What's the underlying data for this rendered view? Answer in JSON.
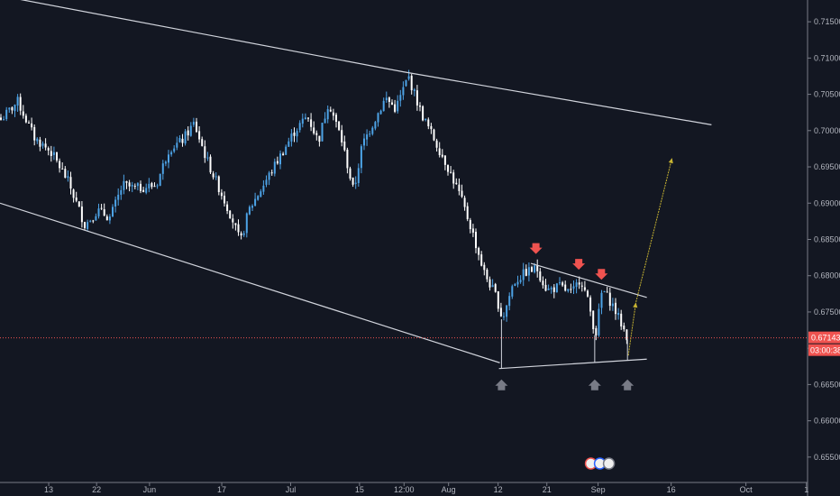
{
  "chart_data": {
    "type": "candlestick",
    "y_axis": {
      "ticks": [
        "0.71500",
        "0.71000",
        "0.70500",
        "0.70000",
        "0.69500",
        "0.69000",
        "0.68500",
        "0.68000",
        "0.67500",
        "0.67000",
        "0.66500",
        "0.66000",
        "0.65500"
      ],
      "range": [
        0.6515,
        0.718
      ],
      "position": "right"
    },
    "x_axis": {
      "ticks": [
        "13",
        "22",
        "Jun",
        "17",
        "Jul",
        "15",
        "12:00",
        "Aug",
        "12",
        "21",
        "Sep",
        "16",
        "Oct",
        "1"
      ]
    },
    "current_price": {
      "label": "0.67143",
      "value": 0.67143,
      "countdown": "03:00:38",
      "color": "#ef5350"
    },
    "colors": {
      "background": "#131722",
      "up_candle": "#4da3e6",
      "down_candle": "#ffffff",
      "trendline": "#d1d4dc",
      "sell_arrow": "#ef5350",
      "buy_arrow": "#787b86",
      "projection": "#c8b432"
    },
    "drawings": {
      "channel_upper": [
        [
          0.0,
          0.7186
        ],
        [
          0.48,
          0.7081
        ],
        [
          0.847,
          0.7008
        ]
      ],
      "channel_lower": [
        [
          0.0,
          0.69
        ],
        [
          0.595,
          0.668
        ]
      ],
      "triangle_top": [
        [
          0.632,
          0.6817
        ],
        [
          0.77,
          0.677
        ]
      ],
      "triangle_bottom": [
        [
          0.594,
          0.6672
        ],
        [
          0.77,
          0.6685
        ]
      ],
      "projection_path": [
        [
          0.748,
          0.669
        ],
        [
          0.757,
          0.6763
        ],
        [
          0.8,
          0.6962
        ]
      ],
      "sell_arrows_at": [
        0.638,
        0.689,
        0.716
      ],
      "buy_arrows_at": [
        0.597,
        0.708,
        0.747
      ]
    },
    "series": {
      "keypoints": [
        [
          0.0,
          0.7015
        ],
        [
          0.02,
          0.704
        ],
        [
          0.04,
          0.699
        ],
        [
          0.06,
          0.697
        ],
        [
          0.08,
          0.693
        ],
        [
          0.1,
          0.687
        ],
        [
          0.115,
          0.689
        ],
        [
          0.13,
          0.688
        ],
        [
          0.145,
          0.6925
        ],
        [
          0.16,
          0.692
        ],
        [
          0.185,
          0.6925
        ],
        [
          0.2,
          0.6975
        ],
        [
          0.215,
          0.6985
        ],
        [
          0.23,
          0.701
        ],
        [
          0.245,
          0.696
        ],
        [
          0.26,
          0.692
        ],
        [
          0.275,
          0.688
        ],
        [
          0.285,
          0.6845
        ],
        [
          0.295,
          0.689
        ],
        [
          0.31,
          0.692
        ],
        [
          0.33,
          0.696
        ],
        [
          0.35,
          0.7
        ],
        [
          0.365,
          0.702
        ],
        [
          0.378,
          0.6985
        ],
        [
          0.39,
          0.704
        ],
        [
          0.405,
          0.699
        ],
        [
          0.42,
          0.6915
        ],
        [
          0.43,
          0.698
        ],
        [
          0.445,
          0.7015
        ],
        [
          0.458,
          0.7045
        ],
        [
          0.47,
          0.703
        ],
        [
          0.485,
          0.7075
        ],
        [
          0.5,
          0.7025
        ],
        [
          0.515,
          0.699
        ],
        [
          0.53,
          0.6955
        ],
        [
          0.545,
          0.6915
        ],
        [
          0.56,
          0.6865
        ],
        [
          0.575,
          0.6805
        ],
        [
          0.59,
          0.677
        ],
        [
          0.597,
          0.674
        ],
        [
          0.61,
          0.679
        ],
        [
          0.625,
          0.6805
        ],
        [
          0.638,
          0.681
        ],
        [
          0.65,
          0.678
        ],
        [
          0.665,
          0.6785
        ],
        [
          0.68,
          0.6775
        ],
        [
          0.69,
          0.6798
        ],
        [
          0.7,
          0.676
        ],
        [
          0.708,
          0.6718
        ],
        [
          0.716,
          0.6782
        ],
        [
          0.728,
          0.676
        ],
        [
          0.74,
          0.673
        ],
        [
          0.747,
          0.6712
        ]
      ]
    }
  }
}
